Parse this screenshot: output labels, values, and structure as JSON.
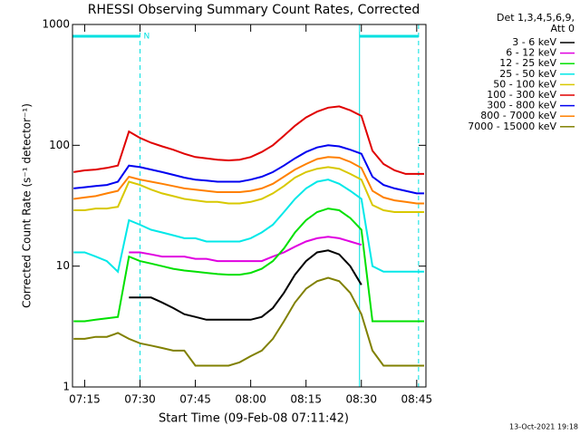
{
  "chart_data": {
    "type": "line",
    "title": "RHESSI Observing Summary Count Rates, Corrected",
    "y_label": "Corrected Count Rate (s⁻¹ detector⁻¹)",
    "x_label": "Start Time (09-Feb-08 07:11:42)",
    "legend_header": [
      "Det 1,3,4,5,6,9,",
      "Att 0"
    ],
    "legend_position": "right",
    "timestamp": "13-Oct-2021 19:18",
    "log_y": true,
    "ylim": [
      1,
      1000
    ],
    "yticks": [
      1,
      10,
      100,
      1000
    ],
    "xlim": [
      "07:11:42",
      "08:47:30"
    ],
    "xticks": [
      "07:15",
      "07:30",
      "07:45",
      "08:00",
      "08:15",
      "08:30",
      "08:45"
    ],
    "flags": [
      {
        "label": "N",
        "start": "07:11:42",
        "end": "07:30"
      },
      {
        "start": "08:29:30",
        "end": "08:45:30"
      }
    ],
    "flag_color": "#00e0e0",
    "solid_lines": [
      "07:11:42",
      "08:29:30"
    ],
    "dashed_lines": [
      "07:30",
      "08:45:30"
    ],
    "x": [
      "07:12",
      "07:15",
      "07:18",
      "07:21",
      "07:24",
      "07:27",
      "07:30",
      "07:33",
      "07:36",
      "07:39",
      "07:42",
      "07:45",
      "07:48",
      "07:51",
      "07:54",
      "07:57",
      "08:00",
      "08:03",
      "08:06",
      "08:09",
      "08:12",
      "08:15",
      "08:18",
      "08:21",
      "08:24",
      "08:27",
      "08:30",
      "08:33",
      "08:36",
      "08:39",
      "08:42",
      "08:45",
      "08:47"
    ],
    "series": [
      {
        "name": "3 - 6 keV",
        "color": "#000000",
        "values": [
          null,
          null,
          null,
          null,
          null,
          5.5,
          5.5,
          5.5,
          5,
          4.5,
          4,
          3.8,
          3.6,
          3.6,
          3.6,
          3.6,
          3.6,
          3.8,
          4.5,
          6,
          8.5,
          11,
          13,
          13.5,
          12.5,
          10,
          7,
          null,
          null,
          null,
          null,
          null,
          null
        ]
      },
      {
        "name": "6 - 12 keV",
        "color": "#e000e0",
        "values": [
          null,
          null,
          null,
          null,
          null,
          13,
          13,
          12.5,
          12,
          12,
          12,
          11.5,
          11.5,
          11,
          11,
          11,
          11,
          11,
          12,
          13,
          14.5,
          16,
          17,
          17.5,
          17,
          16,
          15,
          null,
          null,
          null,
          null,
          null,
          null
        ]
      },
      {
        "name": "12 - 25 keV",
        "color": "#00e000",
        "values": [
          3.5,
          3.5,
          3.6,
          3.7,
          3.8,
          12,
          11,
          10.5,
          10,
          9.5,
          9.2,
          9,
          8.8,
          8.6,
          8.5,
          8.5,
          8.8,
          9.5,
          11,
          14,
          19,
          24,
          28,
          30,
          29,
          25,
          20,
          3.5,
          3.5,
          3.5,
          3.5,
          3.5,
          3.5
        ]
      },
      {
        "name": "25 - 50 keV",
        "color": "#00e8e8",
        "values": [
          13,
          13,
          12,
          11,
          9,
          24,
          22,
          20,
          19,
          18,
          17,
          17,
          16,
          16,
          16,
          16,
          17,
          19,
          22,
          28,
          36,
          44,
          50,
          52,
          48,
          42,
          36,
          10,
          9,
          9,
          9,
          9,
          9
        ]
      },
      {
        "name": "50 - 100 keV",
        "color": "#d8c800",
        "values": [
          29,
          29,
          30,
          30,
          31,
          50,
          47,
          43,
          40,
          38,
          36,
          35,
          34,
          34,
          33,
          33,
          34,
          36,
          40,
          46,
          54,
          60,
          64,
          66,
          64,
          58,
          52,
          32,
          29,
          28,
          28,
          28,
          28
        ]
      },
      {
        "name": "100 - 300 keV",
        "color": "#e00000",
        "values": [
          60,
          62,
          63,
          65,
          68,
          130,
          115,
          105,
          98,
          92,
          85,
          80,
          78,
          76,
          75,
          76,
          80,
          88,
          100,
          120,
          145,
          170,
          190,
          205,
          210,
          195,
          175,
          90,
          70,
          62,
          58,
          58,
          58
        ]
      },
      {
        "name": "300 - 800 keV",
        "color": "#0000f0",
        "values": [
          44,
          45,
          46,
          47,
          50,
          68,
          66,
          63,
          60,
          57,
          54,
          52,
          51,
          50,
          50,
          50,
          52,
          55,
          60,
          68,
          78,
          88,
          96,
          100,
          98,
          92,
          85,
          55,
          47,
          44,
          42,
          40,
          40
        ]
      },
      {
        "name": "800 - 7000 keV",
        "color": "#ff8000",
        "values": [
          36,
          37,
          38,
          40,
          42,
          55,
          52,
          50,
          48,
          46,
          44,
          43,
          42,
          41,
          41,
          41,
          42,
          44,
          48,
          55,
          63,
          70,
          77,
          80,
          79,
          73,
          65,
          42,
          37,
          35,
          34,
          33,
          33
        ]
      },
      {
        "name": "7000 - 15000 keV",
        "color": "#808000",
        "values": [
          2.5,
          2.5,
          2.6,
          2.6,
          2.8,
          2.5,
          2.3,
          2.2,
          2.1,
          2,
          2,
          1.5,
          1.5,
          1.5,
          1.5,
          1.6,
          1.8,
          2,
          2.5,
          3.5,
          5,
          6.5,
          7.5,
          8,
          7.5,
          6,
          4,
          2,
          1.5,
          1.5,
          1.5,
          1.5,
          1.5
        ]
      }
    ]
  }
}
